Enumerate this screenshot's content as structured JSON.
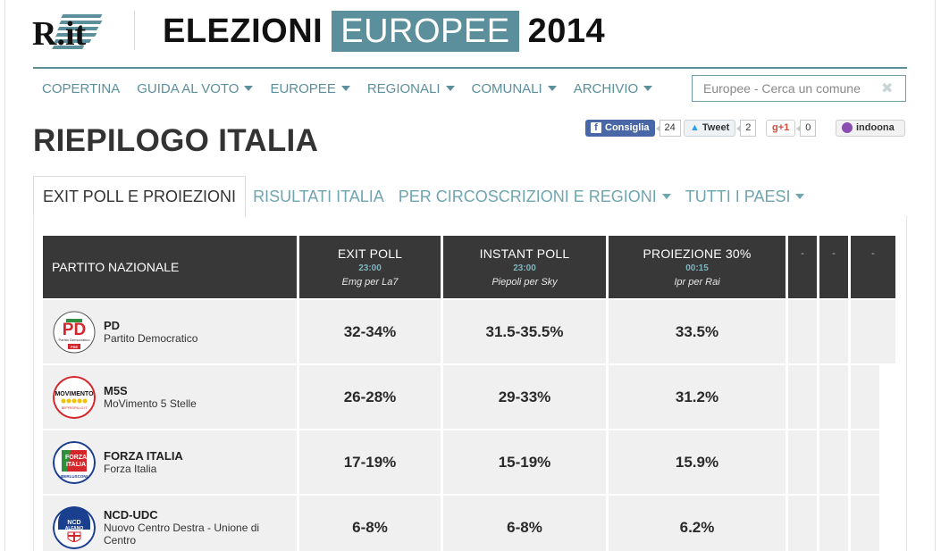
{
  "header": {
    "logo_text": "R.it",
    "title_pre": "ELEZIONI",
    "title_hl": "EUROPEE",
    "title_post": "2014",
    "accent_color": "#5b8f9b"
  },
  "nav": {
    "items": [
      {
        "label": "COPERTINA",
        "dropdown": false
      },
      {
        "label": "GUIDA AL VOTO",
        "dropdown": true
      },
      {
        "label": "EUROPEE",
        "dropdown": true
      },
      {
        "label": "REGIONALI",
        "dropdown": true
      },
      {
        "label": "COMUNALI",
        "dropdown": true
      },
      {
        "label": "ARCHIVIO",
        "dropdown": true
      }
    ],
    "search_placeholder": "Europee - Cerca un comune",
    "search_clear": "✖"
  },
  "page_title": "RIEPILOGO ITALIA",
  "social": {
    "facebook": {
      "label": "Consiglia",
      "icon": "f",
      "count": "24"
    },
    "twitter": {
      "label": "Tweet",
      "icon": "twitter-bird",
      "count": "2"
    },
    "gplus": {
      "label": "g+1",
      "count": "0"
    },
    "indoona": {
      "label": "indoona"
    }
  },
  "tabs": [
    {
      "label": "EXIT POLL E PROIEZIONI",
      "active": true,
      "dropdown": false
    },
    {
      "label": "RISULTATI ITALIA",
      "active": false,
      "dropdown": false
    },
    {
      "label": "PER CIRCOSCRIZIONI E REGIONI",
      "active": false,
      "dropdown": true
    },
    {
      "label": "TUTTI I PAESI",
      "active": false,
      "dropdown": true
    }
  ],
  "table": {
    "party_header": "PARTITO NAZIONALE",
    "columns": [
      {
        "title": "EXIT POLL",
        "time": "23:00",
        "source": "Emg per La7"
      },
      {
        "title": "INSTANT POLL",
        "time": "23:00",
        "source": "Piepoli per Sky"
      },
      {
        "title": "PROIEZIONE 30%",
        "time": "00:15",
        "source": "Ipr per Rai"
      }
    ],
    "empty_columns": [
      "-",
      "-",
      "-"
    ],
    "rows": [
      {
        "abbr": "PD",
        "name": "Partito Democratico",
        "logo": "pd-logo",
        "values": [
          "32-34%",
          "31.5-35.5%",
          "33.5%"
        ]
      },
      {
        "abbr": "M5S",
        "name": "MoVimento 5 Stelle",
        "logo": "m5s-logo",
        "values": [
          "26-28%",
          "29-33%",
          "31.2%"
        ]
      },
      {
        "abbr": "FORZA ITALIA",
        "name": "Forza Italia",
        "logo": "forza-italia-logo",
        "values": [
          "17-19%",
          "15-19%",
          "15.9%"
        ]
      },
      {
        "abbr": "NCD-UDC",
        "name": "Nuovo Centro Destra - Unione di Centro",
        "logo": "ncd-udc-logo",
        "values": [
          "6-8%",
          "6-8%",
          "6.2%"
        ]
      }
    ]
  },
  "logos": {
    "pd": {
      "mark": "PD",
      "caption": "Partito Democratico",
      "sub": "PSE"
    },
    "m5s": {
      "mark": "MOVIMENTO",
      "sub": "BEPPEGRILLO.IT"
    },
    "fi": {
      "line1": "FORZA",
      "line2": "ITALIA",
      "sub": "BERLUSCONI"
    },
    "ncd": {
      "line1": "NCD",
      "line2": "ALFANO"
    }
  }
}
